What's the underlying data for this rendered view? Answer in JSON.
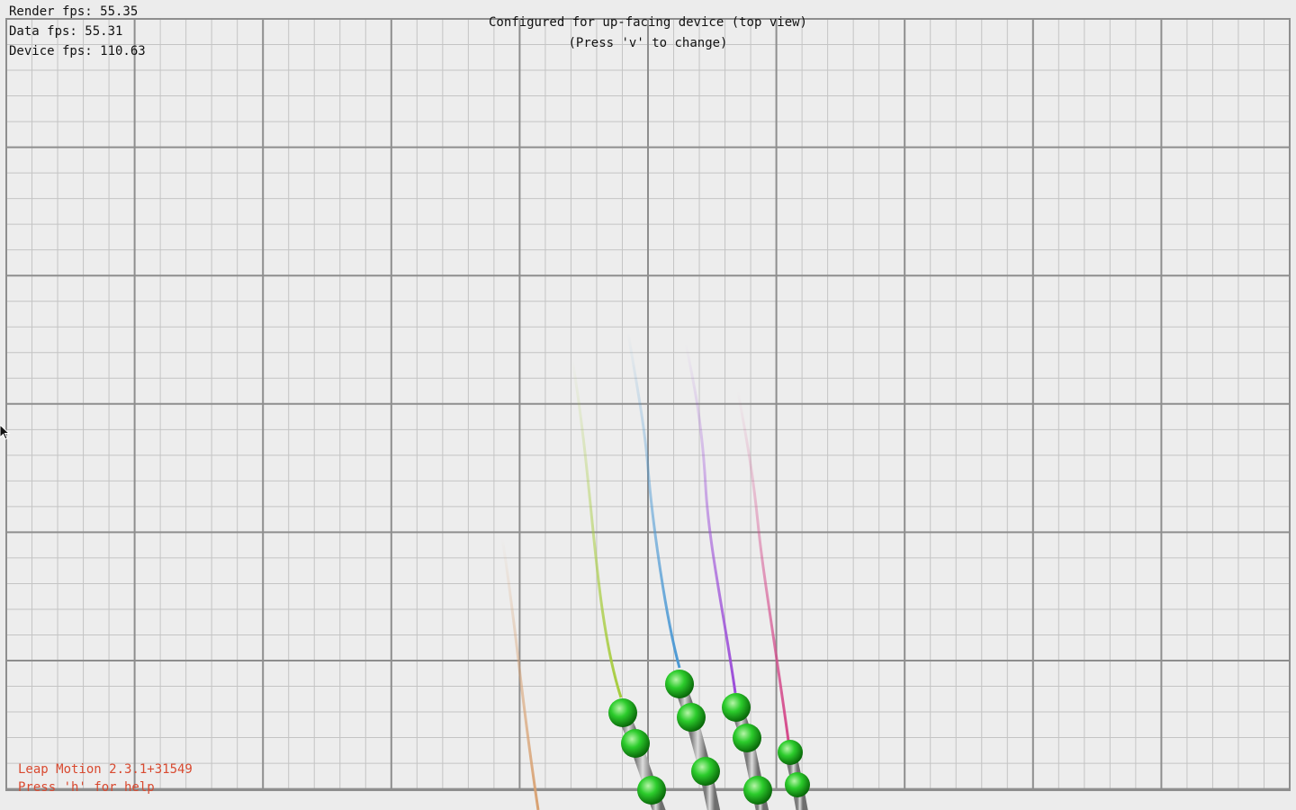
{
  "hud": {
    "render_fps": "Render fps: 55.35",
    "data_fps": "Data fps: 55.31",
    "device_fps": "Device fps: 110.63",
    "mode_line1": "Configured for up-facing device (top view)",
    "mode_line2": "(Press 'v' to change)",
    "version": "Leap Motion 2.3.1+31549",
    "help_hint": "Press 'h' for help"
  },
  "colors": {
    "background": "#ececec",
    "grid_minor": "#c4c4c4",
    "grid_major": "#8e8e8e",
    "joint": "#1fb51f",
    "bone": "#a8a8a8",
    "hint_text": "#d94a30",
    "trail_thumb": "#d8a070",
    "trail_index": "#a6cc3c",
    "trail_middle": "#4a98d4",
    "trail_ring": "#9a4ad8",
    "trail_pinky": "#d4488a"
  },
  "fingers": [
    {
      "name_icon": "thumb-trail"
    },
    {
      "name_icon": "index-finger"
    },
    {
      "name_icon": "middle-finger"
    },
    {
      "name_icon": "ring-finger"
    },
    {
      "name_icon": "pinky-finger"
    }
  ]
}
